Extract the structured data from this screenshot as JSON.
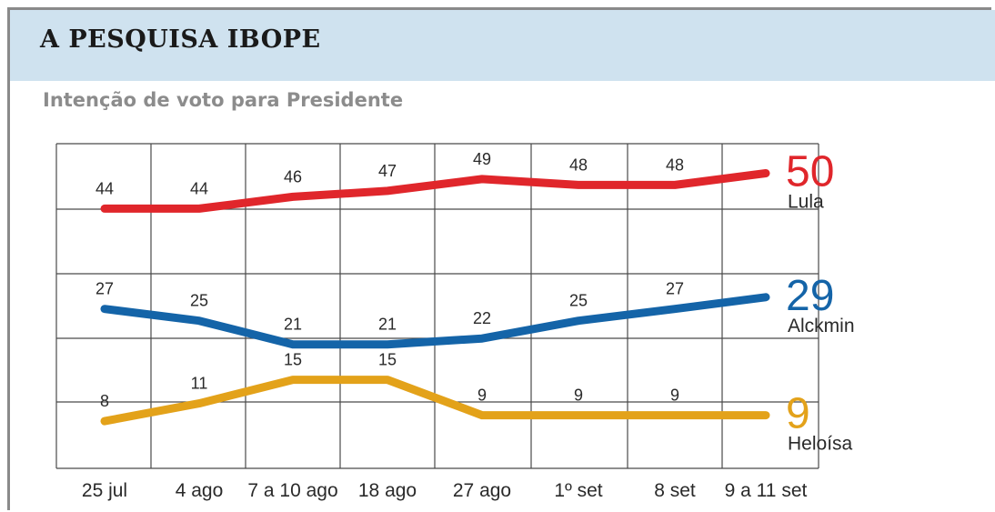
{
  "header": {
    "title": "A PESQUISA IBOPE"
  },
  "chart_data": {
    "type": "line",
    "title": "Intenção de voto para Presidente",
    "categories": [
      "25 jul",
      "4 ago",
      "7 a 10 ago",
      "18 ago",
      "27 ago",
      "1º set",
      "8 set",
      "9 a 11 set"
    ],
    "ylim": [
      0,
      55
    ],
    "grid": true,
    "series": [
      {
        "name": "Lula",
        "color": "#e0262b",
        "values": [
          44,
          44,
          46,
          47,
          49,
          48,
          48,
          50
        ]
      },
      {
        "name": "Alckmin",
        "color": "#1464a8",
        "values": [
          27,
          25,
          21,
          21,
          22,
          25,
          27,
          29
        ]
      },
      {
        "name": "Heloísa",
        "color": "#e3a21a",
        "values": [
          8,
          11,
          15,
          15,
          9,
          9,
          9,
          9
        ]
      }
    ]
  }
}
